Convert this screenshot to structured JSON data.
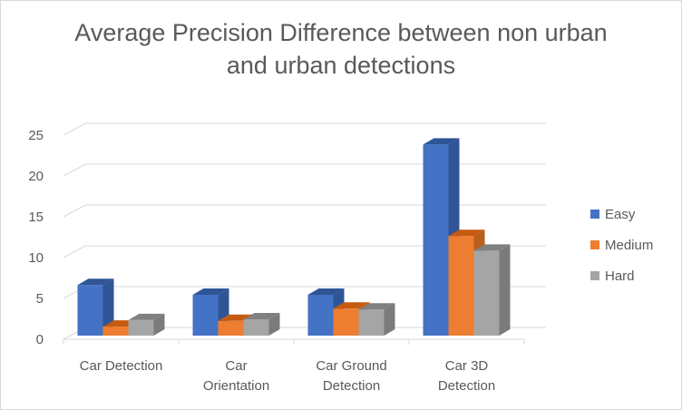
{
  "chart_data": {
    "type": "bar",
    "title_lines": [
      "Average Precision Difference between non urban",
      "and urban detections"
    ],
    "categories": [
      [
        "Car Detection"
      ],
      [
        "Car",
        "Orientation"
      ],
      [
        "Car Ground",
        "Detection"
      ],
      [
        "Car 3D",
        "Detection"
      ]
    ],
    "series": [
      {
        "name": "Easy",
        "values": [
          6.2,
          5.0,
          5.0,
          23.4
        ]
      },
      {
        "name": "Medium",
        "values": [
          1.1,
          1.8,
          3.3,
          12.2
        ]
      },
      {
        "name": "Hard",
        "values": [
          1.9,
          2.0,
          3.2,
          10.4
        ]
      }
    ],
    "ylim": [
      0,
      25
    ],
    "yticks": [
      0,
      5,
      10,
      15,
      20,
      25
    ],
    "ytick_labels": [
      "0",
      "5",
      "10",
      "15",
      "20",
      "25"
    ],
    "grid": true,
    "legend_position": "right",
    "style": "3d-clustered-column"
  },
  "colors": {
    "Easy": {
      "front": "#4472C4",
      "side": "#2F5597",
      "top": "#2F5597"
    },
    "Medium": {
      "front": "#ED7D31",
      "side": "#B95E1D",
      "top": "#C55A11"
    },
    "Hard": {
      "front": "#A5A5A5",
      "side": "#7B7B7B",
      "top": "#808080"
    },
    "grid": "#d9d9d9",
    "text": "#595959"
  }
}
